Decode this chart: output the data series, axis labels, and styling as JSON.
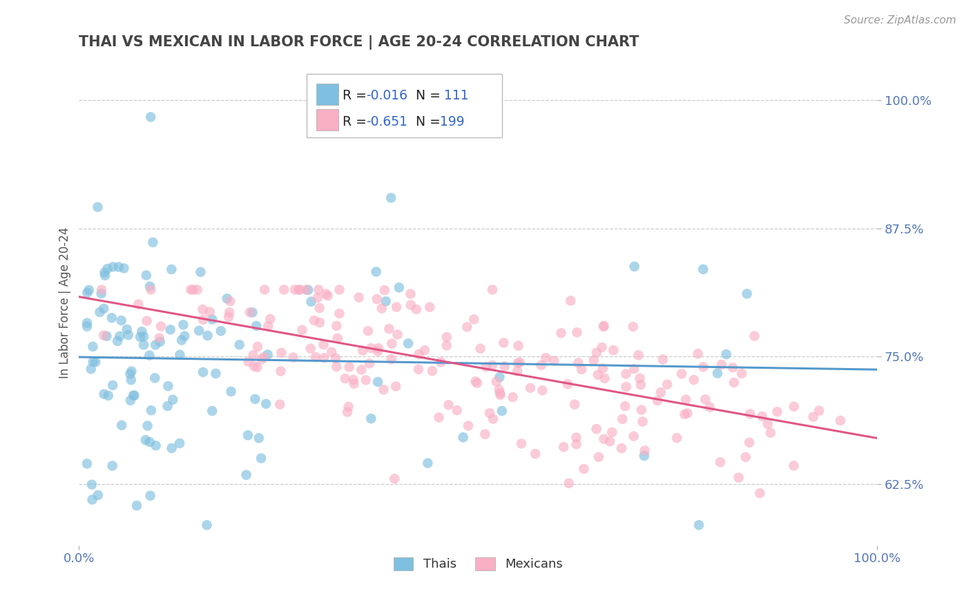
{
  "title": "THAI VS MEXICAN IN LABOR FORCE | AGE 20-24 CORRELATION CHART",
  "source_text": "Source: ZipAtlas.com",
  "ylabel": "In Labor Force | Age 20-24",
  "xlim": [
    0.0,
    1.0
  ],
  "ylim": [
    0.565,
    1.04
  ],
  "yticks": [
    0.625,
    0.75,
    0.875,
    1.0
  ],
  "ytick_labels": [
    "62.5%",
    "75.0%",
    "87.5%",
    "100.0%"
  ],
  "xticks": [
    0.0,
    1.0
  ],
  "xtick_labels": [
    "0.0%",
    "100.0%"
  ],
  "thai_color": "#7fbfdf",
  "mexican_color": "#f9afc4",
  "thai_trend_color": "#5599cc",
  "mexican_trend_color": "#e05585",
  "background_color": "#ffffff",
  "grid_color": "#cccccc",
  "tick_label_color": "#5577bb",
  "thai_R": -0.016,
  "thai_N": 111,
  "mexican_R": -0.651,
  "mexican_N": 199,
  "legend_blue_color": "#3366cc",
  "legend_dark_color": "#222222",
  "title_color": "#444444",
  "source_color": "#999999",
  "ylabel_color": "#555555"
}
